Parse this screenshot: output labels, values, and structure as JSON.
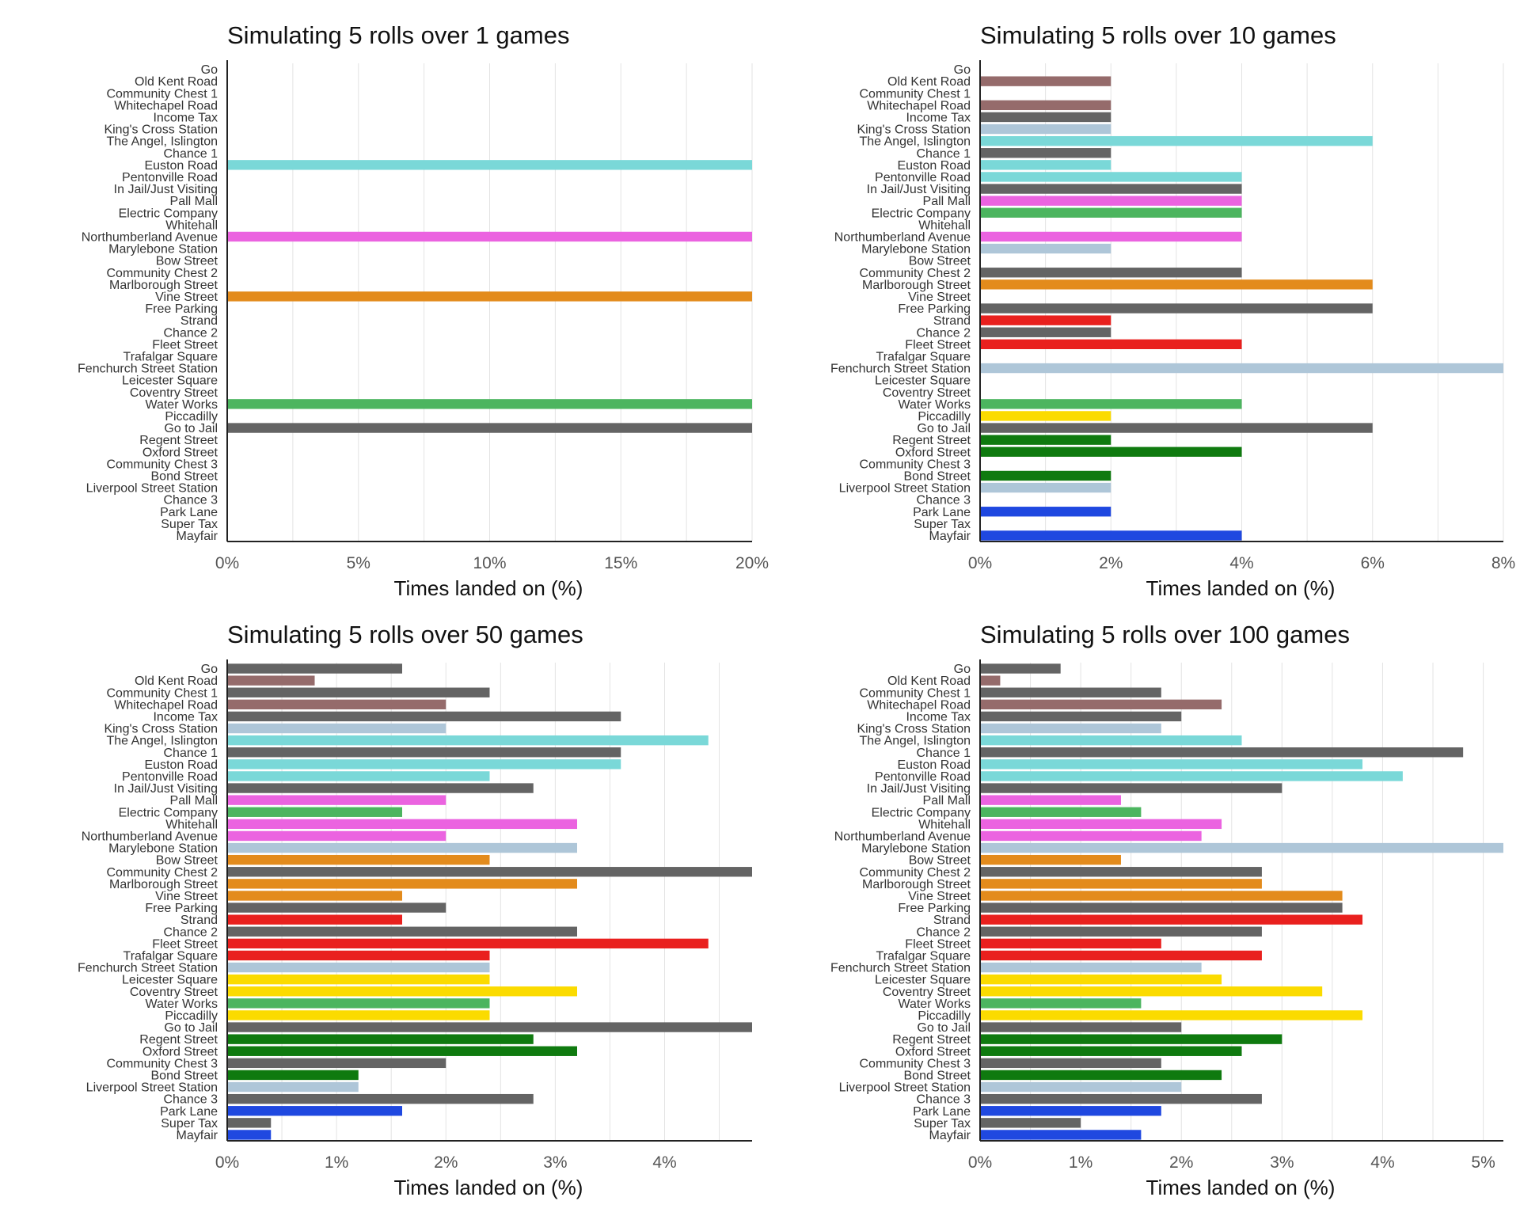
{
  "colors": {
    "gray": "#646464",
    "brown": "#956b6b",
    "lightblue": "#aec6d8",
    "cyan": "#7ad8d8",
    "magenta": "#eb63e0",
    "green": "#4cb55f",
    "orange": "#e38b1c",
    "red": "#e9201e",
    "yellow": "#fbdb00",
    "darkgreen": "#0f7a0f",
    "blue": "#1f48e0"
  },
  "chart_data": [
    {
      "type": "bar",
      "orientation": "horizontal",
      "title": "Simulating 5 rolls over 1 games",
      "xlabel": "Times landed on (%)",
      "ylabel": "",
      "categories": [
        "Go",
        "Old Kent Road",
        "Community Chest 1",
        "Whitechapel Road",
        "Income Tax",
        "King's Cross Station",
        "The Angel, Islington",
        "Chance 1",
        "Euston Road",
        "Pentonville Road",
        "In Jail/Just Visiting",
        "Pall Mall",
        "Electric Company",
        "Whitehall",
        "Northumberland Avenue",
        "Marylebone Station",
        "Bow Street",
        "Community Chest 2",
        "Marlborough Street",
        "Vine Street",
        "Free Parking",
        "Strand",
        "Chance 2",
        "Fleet Street",
        "Trafalgar Square",
        "Fenchurch Street Station",
        "Leicester Square",
        "Coventry Street",
        "Water Works",
        "Piccadilly",
        "Go to Jail",
        "Regent Street",
        "Oxford Street",
        "Community Chest 3",
        "Bond Street",
        "Liverpool Street Station",
        "Chance 3",
        "Park Lane",
        "Super Tax",
        "Mayfair"
      ],
      "category_colors": [
        "gray",
        "brown",
        "gray",
        "brown",
        "gray",
        "lightblue",
        "cyan",
        "gray",
        "cyan",
        "cyan",
        "gray",
        "magenta",
        "green",
        "magenta",
        "magenta",
        "lightblue",
        "orange",
        "gray",
        "orange",
        "orange",
        "gray",
        "red",
        "gray",
        "red",
        "red",
        "lightblue",
        "yellow",
        "yellow",
        "green",
        "yellow",
        "gray",
        "darkgreen",
        "darkgreen",
        "gray",
        "darkgreen",
        "lightblue",
        "gray",
        "blue",
        "gray",
        "blue"
      ],
      "values": [
        0,
        0,
        0,
        0,
        0,
        0,
        0,
        0,
        20,
        0,
        0,
        0,
        0,
        0,
        20,
        0,
        0,
        0,
        0,
        20,
        0,
        0,
        0,
        0,
        0,
        0,
        0,
        0,
        20,
        0,
        20,
        0,
        0,
        0,
        0,
        0,
        0,
        0,
        0,
        0
      ],
      "xlim": [
        0,
        20
      ],
      "ticks": [
        "0%",
        "5%",
        "10%",
        "15%",
        "20%"
      ],
      "tick_values": [
        0,
        5,
        10,
        15,
        20
      ],
      "grid_step": 2.5,
      "grid": true
    },
    {
      "type": "bar",
      "orientation": "horizontal",
      "title": "Simulating 5 rolls over 10 games",
      "xlabel": "Times landed on (%)",
      "ylabel": "",
      "categories": [
        "Go",
        "Old Kent Road",
        "Community Chest 1",
        "Whitechapel Road",
        "Income Tax",
        "King's Cross Station",
        "The Angel, Islington",
        "Chance 1",
        "Euston Road",
        "Pentonville Road",
        "In Jail/Just Visiting",
        "Pall Mall",
        "Electric Company",
        "Whitehall",
        "Northumberland Avenue",
        "Marylebone Station",
        "Bow Street",
        "Community Chest 2",
        "Marlborough Street",
        "Vine Street",
        "Free Parking",
        "Strand",
        "Chance 2",
        "Fleet Street",
        "Trafalgar Square",
        "Fenchurch Street Station",
        "Leicester Square",
        "Coventry Street",
        "Water Works",
        "Piccadilly",
        "Go to Jail",
        "Regent Street",
        "Oxford Street",
        "Community Chest 3",
        "Bond Street",
        "Liverpool Street Station",
        "Chance 3",
        "Park Lane",
        "Super Tax",
        "Mayfair"
      ],
      "category_colors": [
        "gray",
        "brown",
        "gray",
        "brown",
        "gray",
        "lightblue",
        "cyan",
        "gray",
        "cyan",
        "cyan",
        "gray",
        "magenta",
        "green",
        "magenta",
        "magenta",
        "lightblue",
        "orange",
        "gray",
        "orange",
        "orange",
        "gray",
        "red",
        "gray",
        "red",
        "red",
        "lightblue",
        "yellow",
        "yellow",
        "green",
        "yellow",
        "gray",
        "darkgreen",
        "darkgreen",
        "gray",
        "darkgreen",
        "lightblue",
        "gray",
        "blue",
        "gray",
        "blue"
      ],
      "values": [
        0,
        2,
        0,
        2,
        2,
        2,
        6,
        2,
        2,
        4,
        4,
        4,
        4,
        0,
        4,
        2,
        0,
        4,
        6,
        0,
        6,
        2,
        2,
        4,
        0,
        8,
        0,
        0,
        4,
        2,
        6,
        2,
        4,
        0,
        2,
        2,
        0,
        2,
        0,
        4
      ],
      "xlim": [
        0,
        8
      ],
      "ticks": [
        "0%",
        "2%",
        "4%",
        "6%",
        "8%"
      ],
      "tick_values": [
        0,
        2,
        4,
        6,
        8
      ],
      "grid_step": 1,
      "grid": true
    },
    {
      "type": "bar",
      "orientation": "horizontal",
      "title": "Simulating 5 rolls over 50 games",
      "xlabel": "Times landed on (%)",
      "ylabel": "",
      "categories": [
        "Go",
        "Old Kent Road",
        "Community Chest 1",
        "Whitechapel Road",
        "Income Tax",
        "King's Cross Station",
        "The Angel, Islington",
        "Chance 1",
        "Euston Road",
        "Pentonville Road",
        "In Jail/Just Visiting",
        "Pall Mall",
        "Electric Company",
        "Whitehall",
        "Northumberland Avenue",
        "Marylebone Station",
        "Bow Street",
        "Community Chest 2",
        "Marlborough Street",
        "Vine Street",
        "Free Parking",
        "Strand",
        "Chance 2",
        "Fleet Street",
        "Trafalgar Square",
        "Fenchurch Street Station",
        "Leicester Square",
        "Coventry Street",
        "Water Works",
        "Piccadilly",
        "Go to Jail",
        "Regent Street",
        "Oxford Street",
        "Community Chest 3",
        "Bond Street",
        "Liverpool Street Station",
        "Chance 3",
        "Park Lane",
        "Super Tax",
        "Mayfair"
      ],
      "category_colors": [
        "gray",
        "brown",
        "gray",
        "brown",
        "gray",
        "lightblue",
        "cyan",
        "gray",
        "cyan",
        "cyan",
        "gray",
        "magenta",
        "green",
        "magenta",
        "magenta",
        "lightblue",
        "orange",
        "gray",
        "orange",
        "orange",
        "gray",
        "red",
        "gray",
        "red",
        "red",
        "lightblue",
        "yellow",
        "yellow",
        "green",
        "yellow",
        "gray",
        "darkgreen",
        "darkgreen",
        "gray",
        "darkgreen",
        "lightblue",
        "gray",
        "blue",
        "gray",
        "blue"
      ],
      "values": [
        1.6,
        0.8,
        2.4,
        2.0,
        3.6,
        2.0,
        4.4,
        3.6,
        3.6,
        2.4,
        2.8,
        2.0,
        1.6,
        3.2,
        2.0,
        3.2,
        2.4,
        4.8,
        3.2,
        1.6,
        2.0,
        1.6,
        3.2,
        4.4,
        2.4,
        2.4,
        2.4,
        3.2,
        2.4,
        2.4,
        4.8,
        2.8,
        3.2,
        2.0,
        1.2,
        1.2,
        2.8,
        1.6,
        0.4,
        0.4
      ],
      "xlim": [
        0,
        4.8
      ],
      "ticks": [
        "0%",
        "1%",
        "2%",
        "3%",
        "4%"
      ],
      "tick_values": [
        0,
        1,
        2,
        3,
        4
      ],
      "grid_step": 0.5,
      "grid": true
    },
    {
      "type": "bar",
      "orientation": "horizontal",
      "title": "Simulating 5 rolls over 100 games",
      "xlabel": "Times landed on (%)",
      "ylabel": "",
      "categories": [
        "Go",
        "Old Kent Road",
        "Community Chest 1",
        "Whitechapel Road",
        "Income Tax",
        "King's Cross Station",
        "The Angel, Islington",
        "Chance 1",
        "Euston Road",
        "Pentonville Road",
        "In Jail/Just Visiting",
        "Pall Mall",
        "Electric Company",
        "Whitehall",
        "Northumberland Avenue",
        "Marylebone Station",
        "Bow Street",
        "Community Chest 2",
        "Marlborough Street",
        "Vine Street",
        "Free Parking",
        "Strand",
        "Chance 2",
        "Fleet Street",
        "Trafalgar Square",
        "Fenchurch Street Station",
        "Leicester Square",
        "Coventry Street",
        "Water Works",
        "Piccadilly",
        "Go to Jail",
        "Regent Street",
        "Oxford Street",
        "Community Chest 3",
        "Bond Street",
        "Liverpool Street Station",
        "Chance 3",
        "Park Lane",
        "Super Tax",
        "Mayfair"
      ],
      "category_colors": [
        "gray",
        "brown",
        "gray",
        "brown",
        "gray",
        "lightblue",
        "cyan",
        "gray",
        "cyan",
        "cyan",
        "gray",
        "magenta",
        "green",
        "magenta",
        "magenta",
        "lightblue",
        "orange",
        "gray",
        "orange",
        "orange",
        "gray",
        "red",
        "gray",
        "red",
        "red",
        "lightblue",
        "yellow",
        "yellow",
        "green",
        "yellow",
        "gray",
        "darkgreen",
        "darkgreen",
        "gray",
        "darkgreen",
        "lightblue",
        "gray",
        "blue",
        "gray",
        "blue"
      ],
      "values": [
        0.8,
        0.2,
        1.8,
        2.4,
        2.0,
        1.8,
        2.6,
        4.8,
        3.8,
        4.2,
        3.0,
        1.4,
        1.6,
        2.4,
        2.2,
        5.2,
        1.4,
        2.8,
        2.8,
        3.6,
        3.6,
        3.8,
        2.8,
        1.8,
        2.8,
        2.2,
        2.4,
        3.4,
        1.6,
        3.8,
        2.0,
        3.0,
        2.6,
        1.8,
        2.4,
        2.0,
        2.8,
        1.8,
        1.0,
        1.6
      ],
      "xlim": [
        0,
        5.2
      ],
      "ticks": [
        "0%",
        "1%",
        "2%",
        "3%",
        "4%",
        "5%"
      ],
      "tick_values": [
        0,
        1,
        2,
        3,
        4,
        5
      ],
      "grid_step": 0.5,
      "grid": true
    }
  ]
}
